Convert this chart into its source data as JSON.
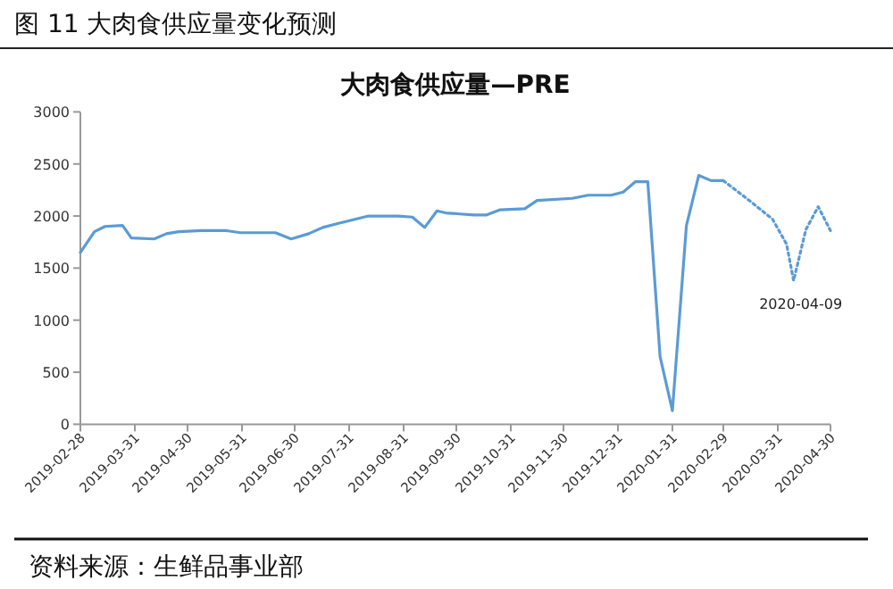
{
  "chart_data": {
    "type": "line",
    "title": "图 11  大肉食供应量变化预测",
    "subtitle": "大肉食供应量—PRE",
    "xlim": [
      "2019-02-28",
      "2020-04-30"
    ],
    "xticks": [
      "2019-02-28",
      "2019-03-31",
      "2019-04-30",
      "2019-05-31",
      "2019-06-30",
      "2019-07-31",
      "2019-08-31",
      "2019-09-30",
      "2019-10-31",
      "2019-11-30",
      "2019-12-31",
      "2020-01-31",
      "2020-02-29",
      "2020-03-31",
      "2020-04-30"
    ],
    "ylim": [
      0,
      3000
    ],
    "yticks": [
      0,
      500,
      1000,
      1500,
      2000,
      2500,
      3000
    ],
    "series": [
      {
        "color": "#5b9bd5",
        "line_style": "solid",
        "x": [
          "2019-02-28",
          "2019-03-08",
          "2019-03-14",
          "2019-03-24",
          "2019-03-29",
          "2019-04-11",
          "2019-04-18",
          "2019-04-25",
          "2019-05-08",
          "2019-05-22",
          "2019-05-30",
          "2019-06-19",
          "2019-06-28",
          "2019-07-08",
          "2019-07-16",
          "2019-07-25",
          "2019-08-11",
          "2019-08-28",
          "2019-09-05",
          "2019-09-12",
          "2019-09-19",
          "2019-09-24",
          "2019-10-02",
          "2019-10-10",
          "2019-10-17",
          "2019-10-25",
          "2019-11-08",
          "2019-11-15",
          "2019-12-05",
          "2019-12-14",
          "2019-12-27",
          "2020-01-03",
          "2020-01-10",
          "2020-01-17",
          "2020-01-24",
          "2020-01-31",
          "2020-02-08",
          "2020-02-15",
          "2020-02-22",
          "2020-02-29"
        ],
        "values": [
          1650,
          1850,
          1900,
          1910,
          1790,
          1780,
          1830,
          1850,
          1860,
          1860,
          1840,
          1840,
          1780,
          1830,
          1890,
          1930,
          2000,
          2000,
          1990,
          1890,
          2050,
          2030,
          2020,
          2010,
          2010,
          2060,
          2070,
          2150,
          2170,
          2200,
          2200,
          2230,
          2330,
          2330,
          650,
          130,
          1910,
          2390,
          2340,
          2340
        ]
      },
      {
        "color": "#5b9bd5",
        "line_style": "dotted",
        "x": [
          "2020-02-29",
          "2020-03-14",
          "2020-03-28",
          "2020-04-05",
          "2020-04-09",
          "2020-04-16",
          "2020-04-23",
          "2020-04-30"
        ],
        "values": [
          2340,
          2160,
          1970,
          1730,
          1380,
          1870,
          2090,
          1860
        ]
      }
    ],
    "annotations": [
      {
        "text": "2020-04-09",
        "x": "2020-04-09",
        "y": 1380
      },
      "资料来源：生鲜品事业部"
    ]
  }
}
